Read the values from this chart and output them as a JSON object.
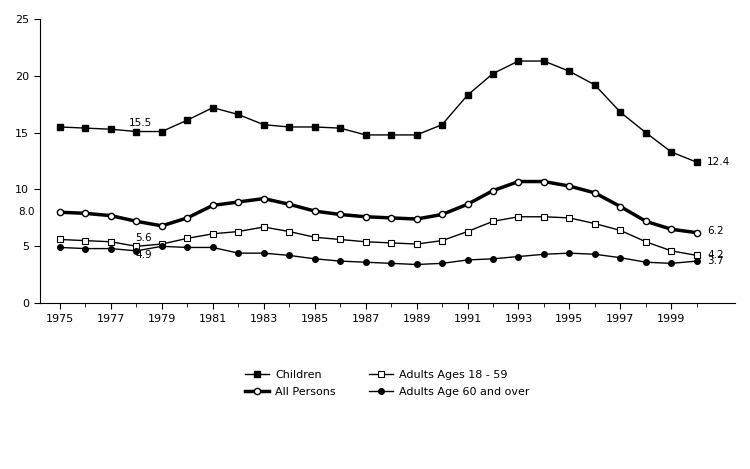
{
  "years": [
    1975,
    1976,
    1977,
    1978,
    1979,
    1980,
    1981,
    1982,
    1983,
    1984,
    1985,
    1986,
    1987,
    1988,
    1989,
    1990,
    1991,
    1992,
    1993,
    1994,
    1995,
    1996,
    1997,
    1998,
    1999,
    2000
  ],
  "children": [
    15.5,
    15.4,
    15.3,
    15.1,
    15.1,
    16.1,
    17.2,
    16.6,
    15.7,
    15.5,
    15.5,
    15.4,
    14.8,
    14.8,
    14.8,
    15.7,
    18.3,
    20.2,
    21.3,
    21.3,
    20.4,
    19.2,
    16.8,
    15.0,
    13.3,
    12.4
  ],
  "all_persons": [
    8.0,
    7.9,
    7.7,
    7.2,
    6.8,
    7.5,
    8.6,
    8.9,
    9.2,
    8.7,
    8.1,
    7.8,
    7.6,
    7.5,
    7.4,
    7.8,
    8.7,
    9.9,
    10.7,
    10.7,
    10.3,
    9.7,
    8.5,
    7.2,
    6.5,
    6.2
  ],
  "adults_18_59": [
    5.6,
    5.5,
    5.4,
    5.0,
    5.2,
    5.7,
    6.1,
    6.3,
    6.7,
    6.3,
    5.8,
    5.6,
    5.4,
    5.3,
    5.2,
    5.5,
    6.3,
    7.2,
    7.6,
    7.6,
    7.5,
    7.0,
    6.4,
    5.4,
    4.6,
    4.2
  ],
  "adults_60_over": [
    4.9,
    4.8,
    4.8,
    4.6,
    5.0,
    4.9,
    4.9,
    4.4,
    4.4,
    4.2,
    3.9,
    3.7,
    3.6,
    3.5,
    3.4,
    3.5,
    3.8,
    3.9,
    4.1,
    4.3,
    4.4,
    4.3,
    4.0,
    3.6,
    3.5,
    3.7
  ],
  "ylim": [
    0,
    25
  ],
  "yticks": [
    0,
    5,
    10,
    15,
    20,
    25
  ],
  "xtick_labels": [
    1975,
    1977,
    1979,
    1981,
    1983,
    1985,
    1987,
    1989,
    1991,
    1993,
    1995,
    1997,
    1999
  ],
  "legend_children": "Children",
  "legend_all_persons": "All Persons",
  "legend_adults_18_59": "Adults Ages 18 - 59",
  "legend_adults_60": "Adults Age 60 and over",
  "background_color": "#ffffff"
}
